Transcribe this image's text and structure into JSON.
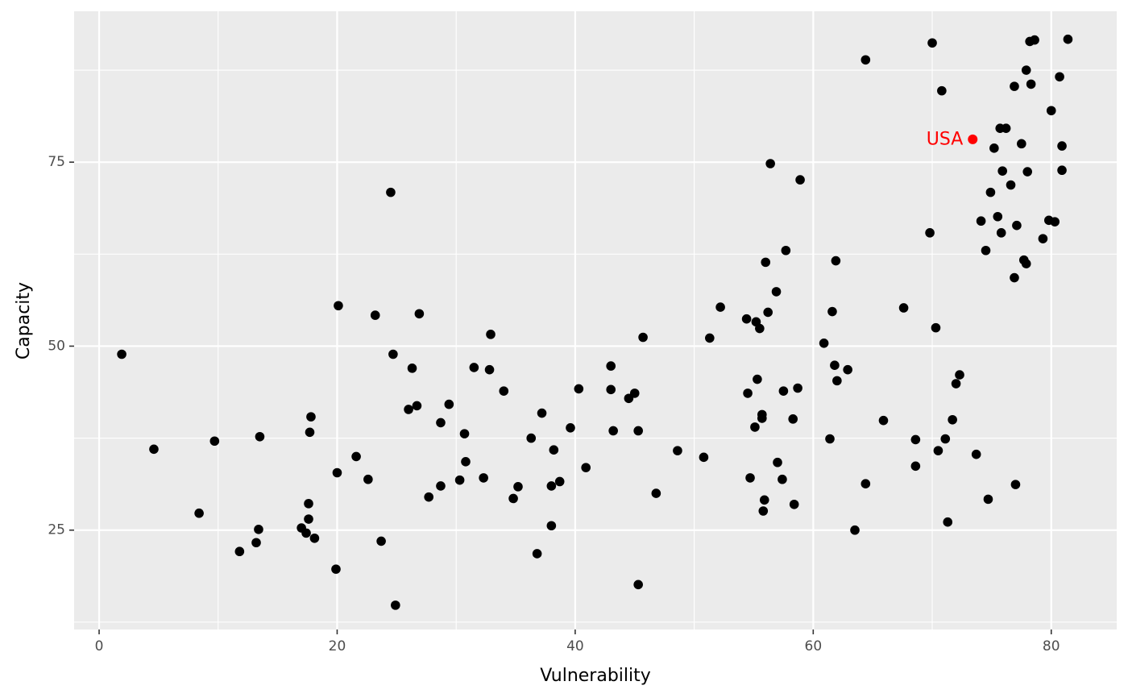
{
  "chart_data": {
    "type": "scatter",
    "title": "",
    "xlabel": "Vulnerability",
    "ylabel": "Capacity",
    "xlim": [
      -2.1,
      85.5
    ],
    "ylim": [
      11.5,
      95.5
    ],
    "x_ticks": [
      0,
      20,
      40,
      60,
      80
    ],
    "x_tick_labels": [
      "0",
      "20",
      "40",
      "60",
      "80"
    ],
    "y_ticks": [
      25,
      50,
      75
    ],
    "y_tick_labels": [
      "25",
      "50",
      "75"
    ],
    "grid": true,
    "background": "#ebebeb",
    "point_color": "#000000",
    "highlight_color": "#ff0000",
    "highlight": {
      "label": "USA",
      "x": 73.4,
      "y": 78.1
    },
    "points": [
      [
        1.9,
        48.9
      ],
      [
        4.6,
        36.0
      ],
      [
        8.4,
        27.3
      ],
      [
        9.7,
        37.1
      ],
      [
        11.8,
        22.1
      ],
      [
        13.2,
        23.3
      ],
      [
        13.4,
        25.1
      ],
      [
        13.5,
        37.7
      ],
      [
        17.0,
        25.3
      ],
      [
        17.4,
        24.6
      ],
      [
        17.6,
        28.6
      ],
      [
        17.6,
        26.5
      ],
      [
        17.7,
        38.3
      ],
      [
        17.8,
        40.4
      ],
      [
        18.1,
        23.9
      ],
      [
        19.9,
        19.7
      ],
      [
        20.0,
        32.8
      ],
      [
        20.1,
        55.5
      ],
      [
        21.6,
        35.0
      ],
      [
        22.6,
        31.9
      ],
      [
        23.2,
        54.2
      ],
      [
        23.7,
        23.5
      ],
      [
        24.5,
        70.9
      ],
      [
        24.7,
        48.9
      ],
      [
        24.9,
        14.8
      ],
      [
        26.0,
        41.4
      ],
      [
        26.3,
        47.0
      ],
      [
        26.7,
        41.9
      ],
      [
        26.9,
        54.4
      ],
      [
        27.7,
        29.5
      ],
      [
        28.7,
        39.6
      ],
      [
        28.7,
        31.0
      ],
      [
        29.4,
        42.1
      ],
      [
        30.3,
        31.8
      ],
      [
        30.7,
        38.1
      ],
      [
        30.8,
        34.3
      ],
      [
        31.5,
        47.1
      ],
      [
        32.3,
        32.1
      ],
      [
        32.8,
        46.8
      ],
      [
        32.9,
        51.6
      ],
      [
        34.0,
        43.9
      ],
      [
        34.8,
        29.3
      ],
      [
        35.2,
        30.9
      ],
      [
        36.3,
        37.5
      ],
      [
        36.8,
        21.8
      ],
      [
        37.2,
        40.9
      ],
      [
        38.0,
        31.0
      ],
      [
        38.0,
        25.6
      ],
      [
        38.2,
        35.9
      ],
      [
        38.7,
        31.6
      ],
      [
        39.6,
        38.9
      ],
      [
        40.3,
        44.2
      ],
      [
        40.9,
        33.5
      ],
      [
        43.0,
        47.3
      ],
      [
        43.0,
        44.1
      ],
      [
        43.2,
        38.5
      ],
      [
        44.5,
        42.9
      ],
      [
        45.0,
        43.6
      ],
      [
        45.3,
        38.5
      ],
      [
        45.3,
        17.6
      ],
      [
        45.7,
        51.2
      ],
      [
        46.8,
        30.0
      ],
      [
        48.6,
        35.8
      ],
      [
        50.8,
        34.9
      ],
      [
        51.3,
        51.1
      ],
      [
        52.2,
        55.3
      ],
      [
        54.4,
        53.7
      ],
      [
        54.5,
        43.6
      ],
      [
        54.7,
        32.1
      ],
      [
        55.1,
        39.0
      ],
      [
        55.2,
        53.3
      ],
      [
        55.3,
        45.5
      ],
      [
        55.5,
        52.4
      ],
      [
        55.7,
        40.7
      ],
      [
        55.7,
        40.2
      ],
      [
        55.8,
        27.6
      ],
      [
        55.9,
        29.1
      ],
      [
        56.0,
        61.4
      ],
      [
        56.2,
        54.6
      ],
      [
        56.4,
        74.8
      ],
      [
        56.9,
        57.4
      ],
      [
        57.0,
        34.2
      ],
      [
        57.4,
        31.9
      ],
      [
        57.5,
        43.9
      ],
      [
        57.7,
        63.0
      ],
      [
        58.3,
        40.1
      ],
      [
        58.4,
        28.5
      ],
      [
        58.7,
        44.3
      ],
      [
        58.9,
        72.6
      ],
      [
        60.9,
        50.4
      ],
      [
        61.4,
        37.4
      ],
      [
        61.6,
        54.7
      ],
      [
        61.8,
        47.4
      ],
      [
        61.9,
        61.6
      ],
      [
        62.0,
        45.3
      ],
      [
        62.9,
        46.8
      ],
      [
        63.5,
        25.0
      ],
      [
        64.4,
        88.9
      ],
      [
        64.4,
        31.3
      ],
      [
        65.9,
        39.9
      ],
      [
        67.6,
        55.2
      ],
      [
        68.6,
        37.3
      ],
      [
        68.6,
        33.7
      ],
      [
        69.8,
        65.4
      ],
      [
        70.0,
        91.2
      ],
      [
        70.3,
        52.5
      ],
      [
        70.5,
        35.8
      ],
      [
        70.8,
        84.7
      ],
      [
        71.1,
        37.4
      ],
      [
        71.3,
        26.1
      ],
      [
        71.7,
        40.0
      ],
      [
        72.0,
        44.9
      ],
      [
        72.3,
        46.1
      ],
      [
        73.7,
        35.3
      ],
      [
        74.1,
        67.0
      ],
      [
        74.5,
        63.0
      ],
      [
        74.7,
        29.2
      ],
      [
        74.9,
        70.9
      ],
      [
        75.2,
        76.9
      ],
      [
        75.5,
        67.6
      ],
      [
        75.7,
        79.6
      ],
      [
        75.8,
        65.4
      ],
      [
        75.9,
        73.8
      ],
      [
        76.2,
        79.6
      ],
      [
        76.6,
        71.9
      ],
      [
        76.9,
        59.3
      ],
      [
        76.9,
        85.3
      ],
      [
        77.0,
        31.2
      ],
      [
        77.1,
        66.4
      ],
      [
        77.5,
        77.5
      ],
      [
        77.7,
        61.7
      ],
      [
        77.9,
        87.5
      ],
      [
        77.9,
        61.2
      ],
      [
        78.0,
        73.7
      ],
      [
        78.2,
        91.4
      ],
      [
        78.3,
        85.6
      ],
      [
        78.6,
        91.6
      ],
      [
        79.3,
        64.6
      ],
      [
        79.8,
        67.1
      ],
      [
        80.0,
        82.0
      ],
      [
        80.3,
        66.9
      ],
      [
        80.7,
        86.6
      ],
      [
        80.9,
        77.2
      ],
      [
        80.9,
        73.9
      ],
      [
        81.4,
        91.7
      ]
    ]
  }
}
